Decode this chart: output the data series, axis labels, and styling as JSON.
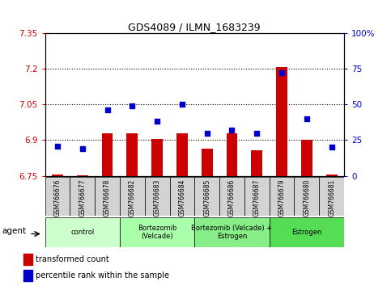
{
  "title": "GDS4089 / ILMN_1683239",
  "samples": [
    "GSM766676",
    "GSM766677",
    "GSM766678",
    "GSM766682",
    "GSM766683",
    "GSM766684",
    "GSM766685",
    "GSM766686",
    "GSM766687",
    "GSM766679",
    "GSM766680",
    "GSM766681"
  ],
  "bar_values": [
    6.757,
    6.752,
    6.927,
    6.93,
    6.905,
    6.93,
    6.863,
    6.927,
    6.857,
    7.205,
    6.9,
    6.757
  ],
  "percentile_values": [
    21,
    19,
    46,
    49,
    38,
    50,
    30,
    32,
    30,
    72,
    40,
    20
  ],
  "bar_color": "#cc0000",
  "dot_color": "#0000cc",
  "ylim_left": [
    6.75,
    7.35
  ],
  "ylim_right": [
    0,
    100
  ],
  "yticks_left": [
    6.75,
    6.9,
    7.05,
    7.2,
    7.35
  ],
  "yticks_right": [
    0,
    25,
    50,
    75,
    100
  ],
  "ytick_labels_left": [
    "6.75",
    "6.9",
    "7.05",
    "7.2",
    "7.35"
  ],
  "ytick_labels_right": [
    "0",
    "25",
    "50",
    "75",
    "100%"
  ],
  "hlines": [
    6.9,
    7.05,
    7.2
  ],
  "groups": [
    {
      "label": "control",
      "start": 0,
      "end": 3,
      "color": "#ccffcc"
    },
    {
      "label": "Bortezomib\n(Velcade)",
      "start": 3,
      "end": 6,
      "color": "#aaffaa"
    },
    {
      "label": "Bortezomib (Velcade) +\nEstrogen",
      "start": 6,
      "end": 9,
      "color": "#88ee88"
    },
    {
      "label": "Estrogen",
      "start": 9,
      "end": 12,
      "color": "#55dd55"
    }
  ],
  "agent_label": "agent",
  "bar_baseline": 6.75,
  "left_tick_color": "#cc0000",
  "right_tick_color": "#0000cc",
  "background_color": "#ffffff",
  "plot_bg_color": "#ffffff"
}
